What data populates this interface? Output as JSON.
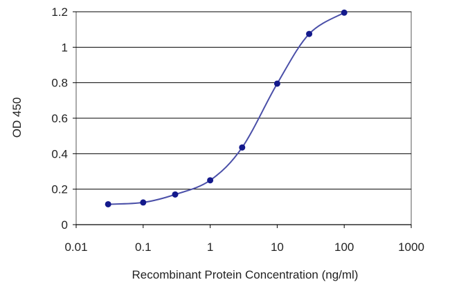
{
  "chart_data": {
    "type": "line",
    "xscale": "log",
    "xlim": [
      0.01,
      1000
    ],
    "ylim": [
      0,
      1.2
    ],
    "x_ticks": [
      0.01,
      0.1,
      1,
      10,
      100,
      1000
    ],
    "x_tick_labels": [
      "0.01",
      "0.1",
      "1",
      "10",
      "100",
      "1000"
    ],
    "y_ticks": [
      0,
      0.2,
      0.4,
      0.6,
      0.8,
      1,
      1.2
    ],
    "y_tick_labels": [
      "0",
      "0.2",
      "0.4",
      "0.6",
      "0.8",
      "1",
      "1.2"
    ],
    "xlabel": "Recombinant Protein Concentration (ng/ml)",
    "ylabel": "OD 450",
    "grid": "horizontal",
    "legend": "none",
    "series": [
      {
        "x": [
          0.03,
          0.1,
          0.3,
          1,
          3,
          10,
          30,
          100
        ],
        "y": [
          0.115,
          0.125,
          0.17,
          0.25,
          0.435,
          0.795,
          1.075,
          1.195
        ]
      }
    ],
    "colors": {
      "line": "#4a4fa8",
      "marker": "#141a8c",
      "grid": "#000000",
      "frame": "#555555"
    }
  }
}
